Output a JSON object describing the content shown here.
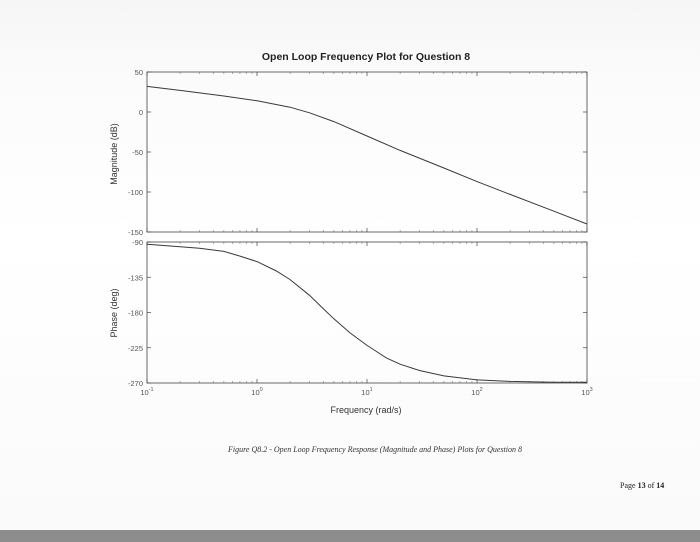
{
  "chart_data": [
    {
      "type": "line",
      "title": "Open Loop Frequency Plot for Question 8",
      "xlabel": "",
      "ylabel": "Magnitude (dB)",
      "x_scale": "log",
      "xlim": [
        0.1,
        1000
      ],
      "ylim": [
        -150,
        50
      ],
      "yticks": [
        "50",
        "0",
        "-50",
        "-100",
        "-150"
      ],
      "grid": false,
      "series": [
        {
          "x": [
            0.1,
            0.2,
            0.5,
            1,
            2,
            3,
            5,
            10,
            20,
            50,
            100,
            200,
            500,
            1000
          ],
          "values": [
            32,
            27,
            20,
            14,
            6,
            -1,
            -12,
            -30,
            -48,
            -70,
            -87,
            -103,
            -124,
            -140
          ]
        }
      ]
    },
    {
      "type": "line",
      "title": "",
      "xlabel": "Frequency (rad/s)",
      "ylabel": "Phase (deg)",
      "x_scale": "log",
      "xlim": [
        0.1,
        1000
      ],
      "ylim": [
        -270,
        -90
      ],
      "yticks": [
        "-90",
        "-135",
        "-180",
        "-225",
        "-270"
      ],
      "xticks": [
        {
          "base": "10",
          "exp": "-1"
        },
        {
          "base": "10",
          "exp": "0"
        },
        {
          "base": "10",
          "exp": "1"
        },
        {
          "base": "10",
          "exp": "2"
        },
        {
          "base": "10",
          "exp": "3"
        }
      ],
      "grid": false,
      "series": [
        {
          "x": [
            0.1,
            0.2,
            0.3,
            0.5,
            0.7,
            1,
            1.5,
            2,
            3,
            4,
            5,
            7,
            10,
            15,
            20,
            30,
            50,
            100,
            200,
            500,
            1000
          ],
          "values": [
            -93,
            -96,
            -98,
            -102,
            -108,
            -115,
            -127,
            -138,
            -158,
            -175,
            -188,
            -206,
            -222,
            -238,
            -246,
            -254,
            -261,
            -266,
            -268,
            -269,
            -269
          ]
        }
      ]
    }
  ],
  "caption": "Figure Q8.2 - Open Loop Frequency Response (Magnitude and Phase) Plots for Question 8",
  "page": {
    "prefix": "Page ",
    "current": "13",
    "sep": " of ",
    "total": "14"
  }
}
